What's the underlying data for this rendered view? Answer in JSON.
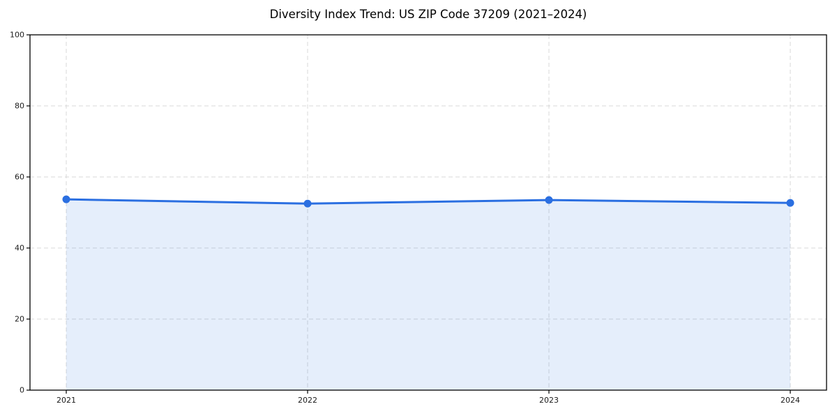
{
  "page": {
    "background_color": "#ffffff"
  },
  "chart_data": {
    "type": "line",
    "title": "Diversity Index Trend: US ZIP Code 37209 (2021–2024)",
    "categories": [
      "2021",
      "2022",
      "2023",
      "2024"
    ],
    "series": [
      {
        "name": "Diversity Index",
        "values": [
          53.7,
          52.5,
          53.5,
          52.7
        ]
      }
    ],
    "xlabel": "",
    "ylabel": "",
    "ylim": [
      0,
      100
    ],
    "yticks": [
      0,
      20,
      40,
      60,
      80,
      100
    ],
    "grid": true,
    "grid_style": "dashed",
    "area_fill": true,
    "legend_position": "none",
    "colors": {
      "line": "#2b6fe1",
      "marker": "#2b6fe1",
      "fill_base": "#2970e0",
      "fill_alpha": 0.12,
      "grid": "#d9d9d9",
      "axis": "#000000",
      "title_text": "#000000",
      "tick_text": "#1a1a1a",
      "plot_background": "#ffffff"
    }
  }
}
